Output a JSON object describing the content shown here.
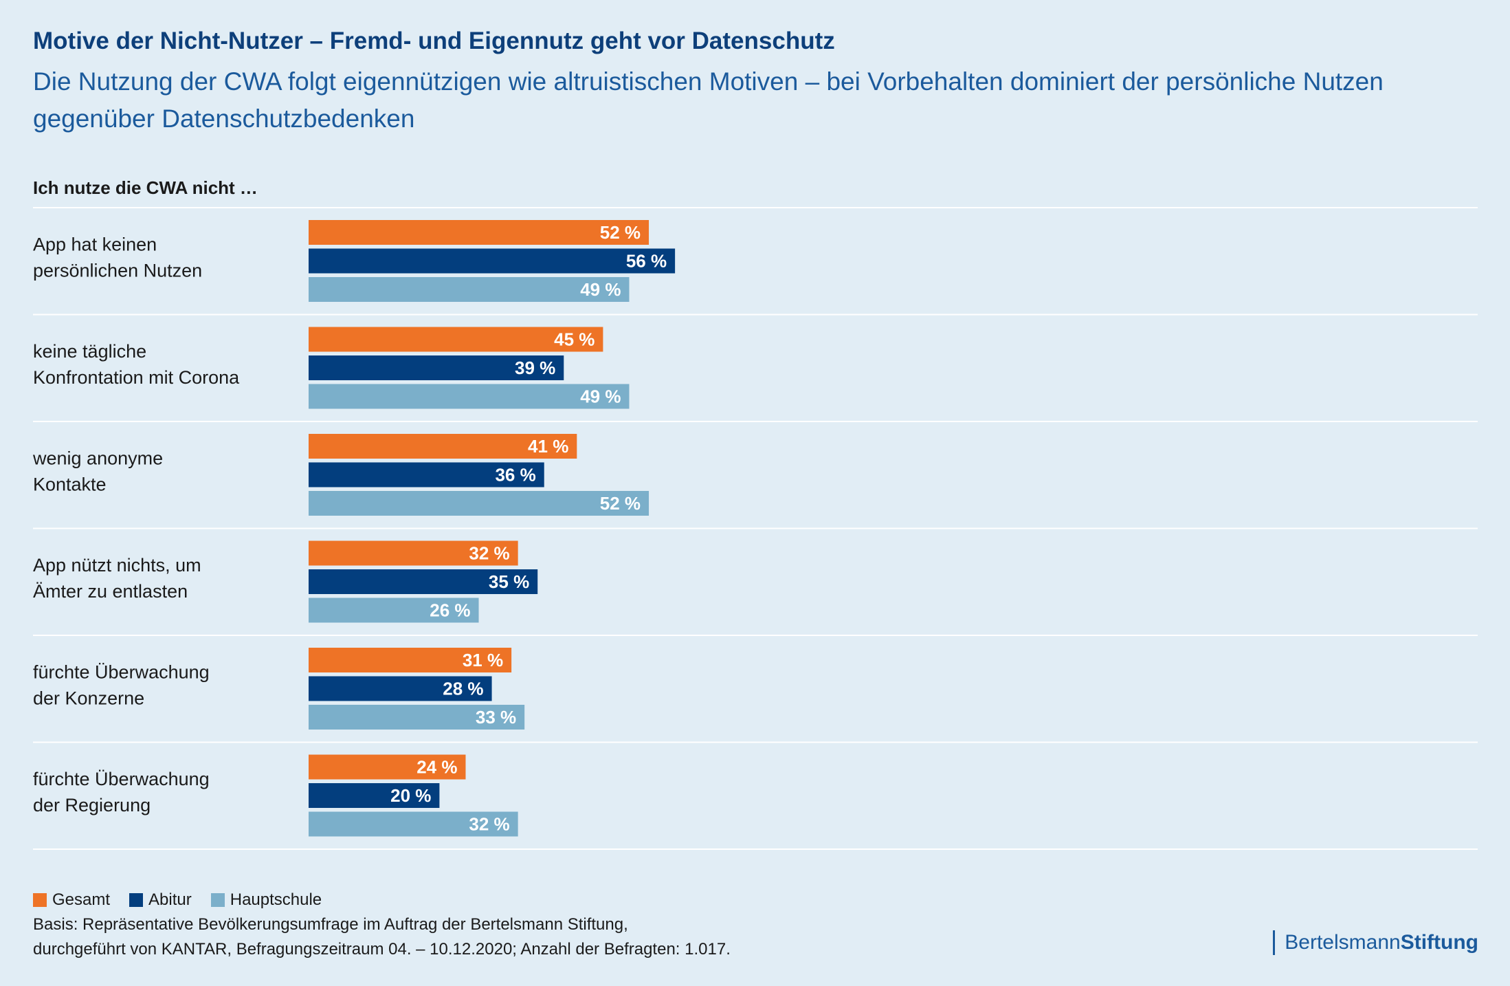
{
  "header": {
    "title": "Motive der Nicht-Nutzer – Fremd- und Eigennutz geht vor Datenschutz",
    "subtitle": "Die Nutzung der CWA folgt eigennützigen wie altruistischen Motiven – bei Vorbehalten dominiert der persönliche Nutzen gegenüber Datenschutzbedenken"
  },
  "chart_data": {
    "type": "bar",
    "orientation": "horizontal",
    "group_heading": "Ich nutze die CWA nicht …",
    "categories": [
      "App hat keinen\npersönlichen Nutzen",
      "keine tägliche\nKonfrontation mit Corona",
      "wenig anonyme\nKontakte",
      "App nützt nichts, um\nÄmter zu entlasten",
      "fürchte Überwachung\nder Konzerne",
      "fürchte Überwachung\nder Regierung"
    ],
    "series": [
      {
        "name": "Gesamt",
        "color": "#ee7326",
        "values": [
          52,
          45,
          41,
          32,
          31,
          24
        ]
      },
      {
        "name": "Abitur",
        "color": "#033e7e",
        "values": [
          56,
          39,
          36,
          35,
          28,
          20
        ]
      },
      {
        "name": "Hauptschule",
        "color": "#7bafca",
        "values": [
          49,
          49,
          52,
          26,
          33,
          32
        ]
      }
    ],
    "value_suffix": " %",
    "xlim": [
      0,
      100
    ],
    "grid": false,
    "legend_position": "bottom-left"
  },
  "footer": {
    "source_line1": "Basis: Repräsentative Bevölkerungsumfrage im Auftrag der Bertelsmann Stiftung,",
    "source_line2": "durchgeführt von KANTAR, Befragungszeitraum 04. – 10.12.2020; Anzahl der Befragten: 1.017.",
    "logo_part1": "Bertelsmann",
    "logo_part2": "Stiftung"
  }
}
